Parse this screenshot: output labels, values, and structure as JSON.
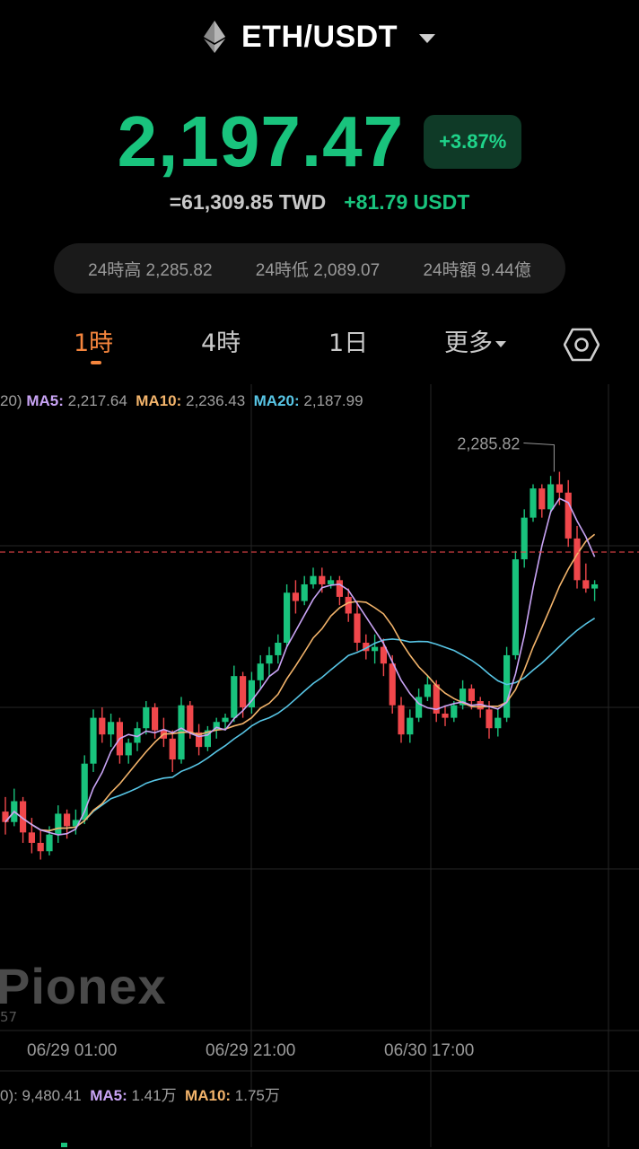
{
  "header": {
    "pair": "ETH/USDT"
  },
  "price": {
    "last": "2,197.47",
    "change_pct": "+3.87%",
    "fiat": "=61,309.85 TWD",
    "change_abs": "+81.79 USDT"
  },
  "stats": {
    "high": "24時高 2,285.82",
    "low": "24時低 2,089.07",
    "volume": "24時額 9.44億"
  },
  "tabs": [
    {
      "label": "1時"
    },
    {
      "label": "4時"
    },
    {
      "label": "1日"
    },
    {
      "label": "更多"
    }
  ],
  "ma_legend": {
    "prefix": "20)",
    "ma5_label": "MA5:",
    "ma5_value": "2,217.64",
    "ma10_label": "MA10:",
    "ma10_value": "2,236.43",
    "ma20_label": "MA20:",
    "ma20_value": "2,187.99"
  },
  "chart_data": {
    "type": "candlestick",
    "high_marker": "2,285.82",
    "x_tick_labels": [
      "06/29 01:00",
      "06/29 21:00",
      "06/30 17:00"
    ],
    "ma_colors": {
      "ma5": "#c9a4f5",
      "ma10": "#f3b46b",
      "ma20": "#58c6e6"
    },
    "up_color": "#19c37d",
    "down_color": "#f0474b",
    "candles": [
      [
        2105,
        2112,
        2094,
        2100
      ],
      [
        2100,
        2116,
        2098,
        2110
      ],
      [
        2110,
        2112,
        2090,
        2095
      ],
      [
        2095,
        2102,
        2085,
        2090
      ],
      [
        2090,
        2096,
        2082,
        2086
      ],
      [
        2086,
        2098,
        2084,
        2094
      ],
      [
        2094,
        2108,
        2090,
        2104
      ],
      [
        2104,
        2106,
        2092,
        2098
      ],
      [
        2098,
        2106,
        2094,
        2101
      ],
      [
        2101,
        2132,
        2099,
        2128
      ],
      [
        2128,
        2154,
        2124,
        2150
      ],
      [
        2150,
        2155,
        2138,
        2142
      ],
      [
        2142,
        2152,
        2136,
        2148
      ],
      [
        2148,
        2150,
        2128,
        2132
      ],
      [
        2132,
        2140,
        2128,
        2138
      ],
      [
        2138,
        2148,
        2134,
        2145
      ],
      [
        2145,
        2158,
        2142,
        2155
      ],
      [
        2155,
        2157,
        2140,
        2144
      ],
      [
        2144,
        2150,
        2136,
        2140
      ],
      [
        2140,
        2144,
        2124,
        2130
      ],
      [
        2130,
        2160,
        2128,
        2156
      ],
      [
        2156,
        2158,
        2140,
        2143
      ],
      [
        2143,
        2147,
        2132,
        2136
      ],
      [
        2136,
        2146,
        2134,
        2144
      ],
      [
        2144,
        2150,
        2140,
        2148
      ],
      [
        2148,
        2152,
        2144,
        2150
      ],
      [
        2150,
        2175,
        2148,
        2170
      ],
      [
        2170,
        2172,
        2150,
        2155
      ],
      [
        2155,
        2172,
        2152,
        2168
      ],
      [
        2168,
        2180,
        2164,
        2176
      ],
      [
        2176,
        2184,
        2170,
        2180
      ],
      [
        2180,
        2190,
        2176,
        2186
      ],
      [
        2186,
        2214,
        2184,
        2210
      ],
      [
        2210,
        2216,
        2200,
        2206
      ],
      [
        2206,
        2218,
        2204,
        2214
      ],
      [
        2214,
        2222,
        2212,
        2218
      ],
      [
        2218,
        2222,
        2210,
        2214
      ],
      [
        2214,
        2218,
        2212,
        2216
      ],
      [
        2216,
        2218,
        2204,
        2208
      ],
      [
        2208,
        2212,
        2196,
        2200
      ],
      [
        2200,
        2206,
        2182,
        2186
      ],
      [
        2186,
        2190,
        2178,
        2182
      ],
      [
        2182,
        2190,
        2176,
        2184
      ],
      [
        2184,
        2188,
        2170,
        2176
      ],
      [
        2176,
        2180,
        2152,
        2156
      ],
      [
        2156,
        2160,
        2138,
        2142
      ],
      [
        2142,
        2154,
        2138,
        2150
      ],
      [
        2150,
        2164,
        2148,
        2160
      ],
      [
        2160,
        2170,
        2158,
        2166
      ],
      [
        2166,
        2168,
        2148,
        2152
      ],
      [
        2152,
        2156,
        2146,
        2150
      ],
      [
        2150,
        2158,
        2148,
        2156
      ],
      [
        2156,
        2168,
        2154,
        2164
      ],
      [
        2164,
        2166,
        2154,
        2158
      ],
      [
        2158,
        2160,
        2150,
        2154
      ],
      [
        2154,
        2158,
        2140,
        2145
      ],
      [
        2145,
        2154,
        2141,
        2150
      ],
      [
        2150,
        2184,
        2148,
        2180
      ],
      [
        2180,
        2230,
        2178,
        2226
      ],
      [
        2226,
        2250,
        2222,
        2246
      ],
      [
        2246,
        2262,
        2244,
        2260
      ],
      [
        2260,
        2262,
        2246,
        2250
      ],
      [
        2250,
        2266,
        2248,
        2262
      ],
      [
        2262,
        2268,
        2252,
        2258
      ],
      [
        2258,
        2264,
        2232,
        2236
      ],
      [
        2236,
        2242,
        2212,
        2216
      ],
      [
        2216,
        2224,
        2210,
        2212
      ],
      [
        2212,
        2216,
        2206,
        2214
      ]
    ]
  },
  "watermark": {
    "brand": "Pionex",
    "sub": "57"
  },
  "vol_legend": {
    "prefix": "0): 9,480.41",
    "ma5_label": "MA5:",
    "ma5_value": "1.41万",
    "ma10_label": "MA10:",
    "ma10_value": "1.75万"
  }
}
